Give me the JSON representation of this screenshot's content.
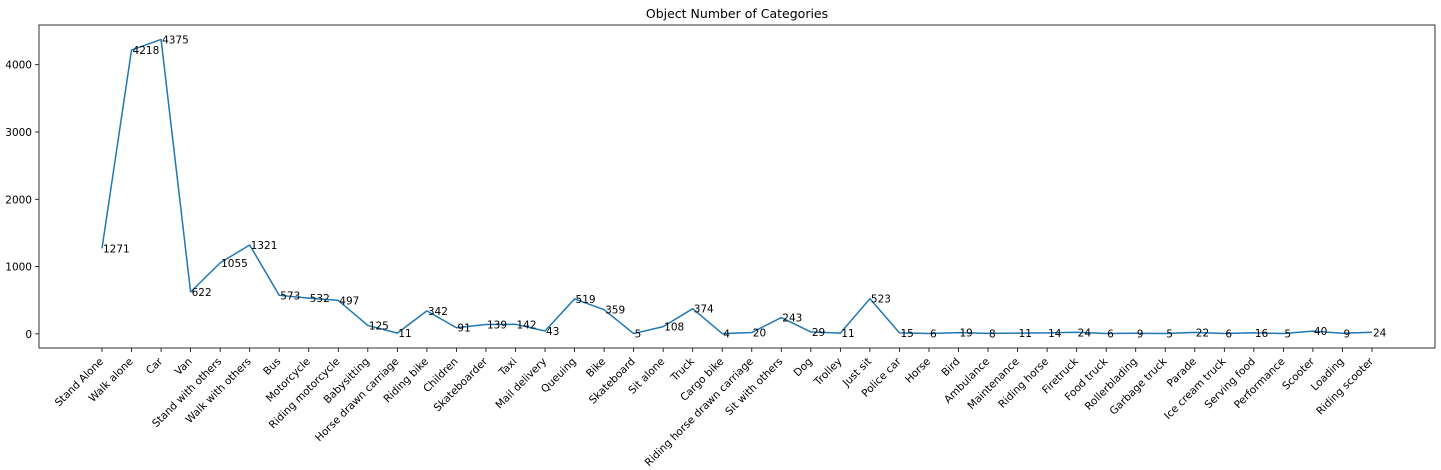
{
  "chart_data": {
    "type": "line",
    "title": "Object Number of Categories",
    "xlabel": "",
    "ylabel": "",
    "grid": false,
    "ylim": [
      -210,
      4590
    ],
    "yticks": [
      0,
      1000,
      2000,
      3000,
      4000
    ],
    "color": "#1f77b4",
    "categories": [
      "Stand Alone",
      "Walk alone",
      "Car",
      "Van",
      "Stand with others",
      "Walk with others",
      "Bus",
      "Motorcycle",
      "Riding motorcycle",
      "Babysitting",
      "Horse drawn carriage",
      "Riding bike",
      "Children",
      "Skateboarder",
      "Taxi",
      "Mail delivery",
      "Queuing",
      "Bike",
      "Skateboard",
      "Sit alone",
      "Truck",
      "Cargo bike",
      "Riding horse drawn carriage",
      "Sit with others",
      "Dog",
      "Trolley",
      "Just sit",
      "Police car",
      "Horse",
      "Bird",
      "Ambulance",
      "Maintenance",
      "Riding horse",
      "Firetruck",
      "Food truck",
      "Rollerblading",
      "Garbage truck",
      "Parade",
      "Ice cream truck",
      "Serving food",
      "Performance",
      "Scooter",
      "Loading",
      "Riding scooter"
    ],
    "values": [
      1271,
      4218,
      4375,
      622,
      1055,
      1321,
      573,
      532,
      497,
      125,
      11,
      342,
      91,
      139,
      142,
      43,
      519,
      359,
      5,
      108,
      374,
      4,
      20,
      243,
      29,
      11,
      523,
      15,
      6,
      19,
      8,
      11,
      14,
      24,
      6,
      9,
      5,
      22,
      6,
      16,
      5,
      40,
      9,
      24
    ]
  }
}
